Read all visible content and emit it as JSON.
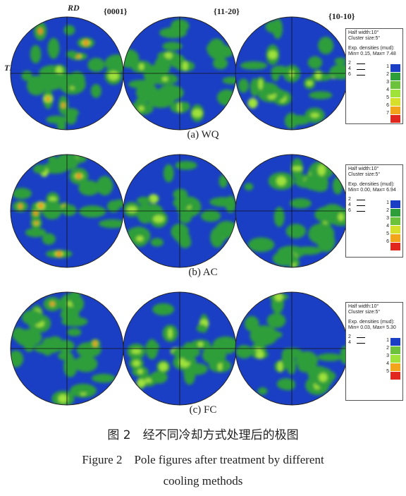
{
  "axes": {
    "rd": "RD",
    "td": "TD"
  },
  "planes": [
    "{0001}",
    "{11-20}",
    "{10-10}"
  ],
  "rows": [
    {
      "caption": "(a) WQ",
      "legend": {
        "half_width": "Half width:10°",
        "cluster": "Cluster size:5°",
        "exp": "Exp. densities (mud):",
        "minmax": "Min= 0.15, Max= 7.48",
        "contours": [
          "2",
          "4",
          "6"
        ],
        "scale": [
          "1",
          "2",
          "3",
          "4",
          "5",
          "6",
          "7"
        ]
      }
    },
    {
      "caption": "(b) AC",
      "legend": {
        "half_width": "Half width:10°",
        "cluster": "Cluster size:5°",
        "exp": "Exp. densities (mud):",
        "minmax": "Min= 0.00, Max= 6.94",
        "contours": [
          "2",
          "4",
          "6"
        ],
        "scale": [
          "1",
          "2",
          "3",
          "4",
          "5",
          "6"
        ]
      }
    },
    {
      "caption": "(c) FC",
      "legend": {
        "half_width": "Half width:10°",
        "cluster": "Cluster size:5°",
        "exp": "Exp. densities (mud):",
        "minmax": "Min= 0.03, Max= 5.30",
        "contours": [
          "2",
          "4"
        ],
        "scale": [
          "1",
          "2",
          "3",
          "4",
          "5"
        ]
      }
    }
  ],
  "colors": {
    "low": "#1a3fc4",
    "mid": "#2e9e3a",
    "high": "#9ee23a",
    "peak": "#f2a41a",
    "max": "#e0281e"
  },
  "figure": {
    "title_cn": "图 2　经不同冷却方式处理后的极图",
    "title_en_1": "Figure 2　Pole figures after treatment by different",
    "title_en_2": "cooling methods"
  }
}
